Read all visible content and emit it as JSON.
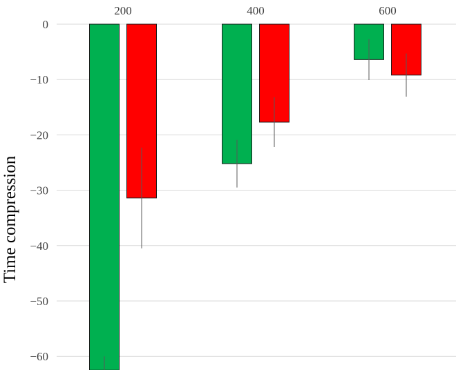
{
  "chart_data": {
    "type": "bar",
    "title": "",
    "xlabel": "",
    "ylabel": "Time compression",
    "categories": [
      "200",
      "400",
      "600"
    ],
    "x_axis_position": "top",
    "ylim": [
      -62.5,
      0
    ],
    "yticks": [
      0,
      -10,
      -20,
      -30,
      -40,
      -50,
      -60
    ],
    "grid": true,
    "legend": "none",
    "series": [
      {
        "color": "#00B050",
        "values": [
          -62.5,
          -25.2,
          -6.4
        ],
        "errors": [
          2.5,
          4.3,
          3.7
        ]
      },
      {
        "color": "#FF0000",
        "values": [
          -31.4,
          -17.7,
          -9.2
        ],
        "errors": [
          9.1,
          4.5,
          3.9
        ]
      }
    ]
  }
}
